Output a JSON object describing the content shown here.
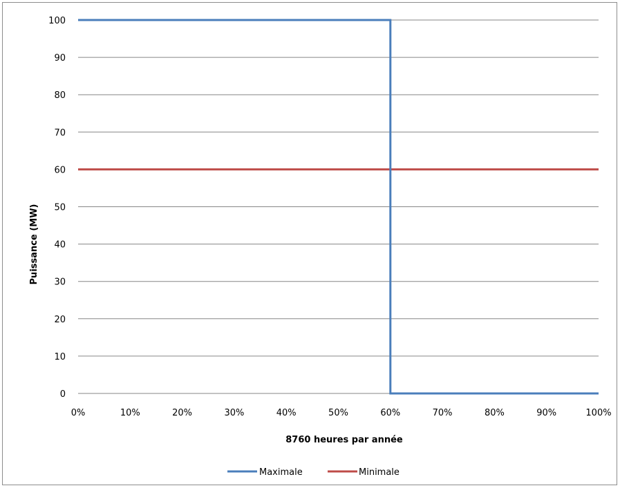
{
  "chart_data": {
    "type": "line",
    "title": "",
    "xlabel": "8760 heures par année",
    "ylabel": "Puissance (MW)",
    "xlim": [
      0,
      100
    ],
    "ylim": [
      0,
      100
    ],
    "x_ticks": [
      "0%",
      "10%",
      "20%",
      "30%",
      "40%",
      "50%",
      "60%",
      "70%",
      "80%",
      "90%",
      "100%"
    ],
    "y_ticks": [
      "0",
      "10",
      "20",
      "30",
      "40",
      "50",
      "60",
      "70",
      "80",
      "90",
      "100"
    ],
    "grid": "horizontal",
    "legend_position": "bottom",
    "series": [
      {
        "name": "Maximale",
        "color": "#4a7ebb",
        "points": [
          [
            0,
            100
          ],
          [
            60,
            100
          ],
          [
            60,
            0
          ],
          [
            100,
            0
          ]
        ]
      },
      {
        "name": "Minimale",
        "color": "#be4b48",
        "points": [
          [
            0,
            60
          ],
          [
            100,
            60
          ]
        ]
      }
    ]
  }
}
